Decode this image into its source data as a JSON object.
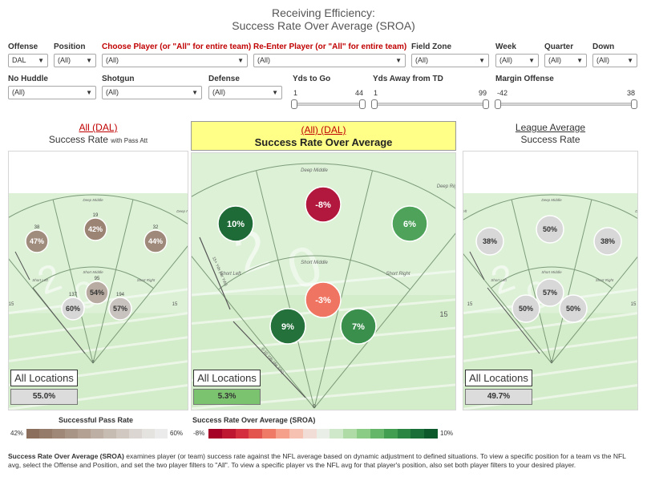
{
  "title": {
    "line1": "Receiving Efficiency:",
    "line2": "Success Rate Over Average (SROA)"
  },
  "filters_row1": [
    {
      "label": "Offense",
      "value": "DAL",
      "red": false
    },
    {
      "label": "Position",
      "value": "(All)",
      "red": false
    },
    {
      "label": "Choose Player (or \"All\" for entire team)",
      "value": "(All)",
      "red": true
    },
    {
      "label": "Re-Enter Player (or \"All\" for entire team)",
      "value": "(All)",
      "red": true
    },
    {
      "label": "Field Zone",
      "value": "(All)",
      "red": false
    },
    {
      "label": "Week",
      "value": "(All)",
      "red": false
    },
    {
      "label": "Quarter",
      "value": "(All)",
      "red": false
    },
    {
      "label": "Down",
      "value": "(All)",
      "red": false
    }
  ],
  "filters_row2": [
    {
      "label": "No Huddle",
      "value": "(All)"
    },
    {
      "label": "Shotgun",
      "value": "(All)"
    },
    {
      "label": "Defense",
      "value": "(All)"
    }
  ],
  "sliders": [
    {
      "label": "Yds to Go",
      "min": "1",
      "max": "44"
    },
    {
      "label": "Yds Away from TD",
      "min": "1",
      "max": "99"
    },
    {
      "label": "Margin Offense",
      "min": "-42",
      "max": "38"
    }
  ],
  "panels": {
    "left": {
      "title1": "All (DAL)",
      "title2": "Success Rate",
      "title2_small": "with Pass Att",
      "location_label": "All Locations",
      "location_value": "55.0%",
      "value_color": "#dcdcdc"
    },
    "center": {
      "title1": "(All) (DAL)",
      "title2": "Success Rate Over Average",
      "location_label": "All Locations",
      "location_value": "5.3%",
      "value_color": "#7cc36f",
      "highlight": "#ffff88"
    },
    "right": {
      "title1": "League Average",
      "title2": "Success Rate",
      "location_label": "All Locations",
      "location_value": "49.7%",
      "value_color": "#dcdcdc"
    }
  },
  "field_labels": {
    "deep_left": "Deep Left",
    "deep_middle": "Deep Middle",
    "deep_right": "Deep Right",
    "short_left": "Short Left",
    "short_middle": "Short Middle",
    "short_right": "Short Right",
    "ten_yds": "0-10 Yds (Air Yds)",
    "fifteen_yds": "15+ Yds (Air Yds)",
    "yard_15": "15",
    "zero": "0"
  },
  "chart_data": [
    {
      "type": "bubble-field",
      "title": "All (DAL) Success Rate with Pass Att",
      "points": [
        {
          "location": "Deep Left",
          "value": "47%",
          "count": "38",
          "color": "#a08c7d"
        },
        {
          "location": "Deep Middle",
          "value": "42%",
          "count": "19",
          "color": "#9c8475"
        },
        {
          "location": "Deep Right",
          "value": "44%",
          "count": "32",
          "color": "#9e897a"
        },
        {
          "location": "Short Left",
          "value": "60%",
          "count": "137",
          "color": "#d7d7d7"
        },
        {
          "location": "Short Middle",
          "value": "54%",
          "count": "95",
          "color": "#b8aba1"
        },
        {
          "location": "Short Right",
          "value": "57%",
          "count": "194",
          "color": "#c8c3bf"
        }
      ]
    },
    {
      "type": "bubble-field",
      "title": "(All) (DAL) Success Rate Over Average",
      "points": [
        {
          "location": "Deep Left",
          "value": "10%",
          "color": "#1f6b37"
        },
        {
          "location": "Deep Middle",
          "value": "-8%",
          "color": "#b2183d"
        },
        {
          "location": "Deep Right",
          "value": "6%",
          "color": "#4ea25a"
        },
        {
          "location": "Short Left",
          "value": "9%",
          "color": "#24713b"
        },
        {
          "location": "Short Middle",
          "value": "-3%",
          "color": "#ef7461"
        },
        {
          "location": "Short Right",
          "value": "7%",
          "color": "#3a8f4d"
        }
      ]
    },
    {
      "type": "bubble-field",
      "title": "League Average Success Rate",
      "points": [
        {
          "location": "Deep Left",
          "value": "38%",
          "color": "#d8d8d8"
        },
        {
          "location": "Deep Middle",
          "value": "50%",
          "color": "#d8d8d8"
        },
        {
          "location": "Deep Right",
          "value": "38%",
          "color": "#d8d8d8"
        },
        {
          "location": "Short Left",
          "value": "50%",
          "color": "#d8d8d8"
        },
        {
          "location": "Short Middle",
          "value": "57%",
          "color": "#d8d8d8"
        },
        {
          "location": "Short Right",
          "value": "50%",
          "color": "#d8d8d8"
        }
      ]
    }
  ],
  "legends": {
    "spr": {
      "title": "Successful Pass Rate",
      "min": "42%",
      "max": "60%",
      "colors": [
        "#8b6f5c",
        "#957b6a",
        "#9f8878",
        "#a99586",
        "#b3a294",
        "#bdafa3",
        "#c7bcb2",
        "#d1c9c1",
        "#dbd6d1",
        "#e5e3e0",
        "#ebebeb"
      ]
    },
    "sroa": {
      "title": "Success Rate Over Average (SROA)",
      "min": "-8%",
      "max": "10%",
      "colors": [
        "#a50026",
        "#bd1731",
        "#d32f3e",
        "#e4544f",
        "#ef7a66",
        "#f5a08a",
        "#f7c1b2",
        "#f2dcd6",
        "#e9eee7",
        "#cfe8c9",
        "#aedba6",
        "#8acb85",
        "#66b66a",
        "#429e51",
        "#2a8542",
        "#1a6e37",
        "#0c5a2c"
      ]
    }
  },
  "footnote_bold": "Success Rate Over Average (SROA)",
  "footnote_rest": " examines player (or team) success rate against the NFL average based on dynamic adjustment to defined situations. To view a specific position for a team vs the NFL avg, select the Offense and Position, and set the two player filters to \"All\". To view a specific player vs the NFL avg for that player's position, also set both player filters to your desired player."
}
